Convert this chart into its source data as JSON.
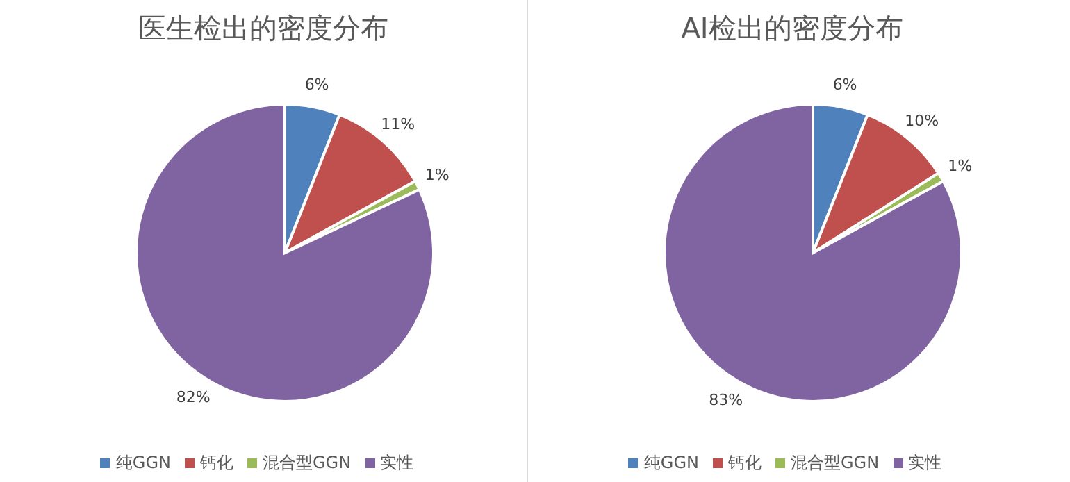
{
  "chart_data": [
    {
      "type": "pie",
      "title": "医生检出的密度分布",
      "categories": [
        "纯GGN",
        "钙化",
        "混合型GGN",
        "实性"
      ],
      "values": [
        6,
        11,
        1,
        82
      ],
      "value_labels": [
        "6%",
        "11%",
        "1%",
        "82%"
      ],
      "colors": [
        "#4f81bd",
        "#c0504d",
        "#9bbb59",
        "#8064a2"
      ],
      "legend": "bottom"
    },
    {
      "type": "pie",
      "title": "AI检出的密度分布",
      "categories": [
        "纯GGN",
        "钙化",
        "混合型GGN",
        "实性"
      ],
      "values": [
        6,
        10,
        1,
        83
      ],
      "value_labels": [
        "6%",
        "10%",
        "1%",
        "83%"
      ],
      "colors": [
        "#4f81bd",
        "#c0504d",
        "#9bbb59",
        "#8064a2"
      ],
      "legend": "bottom"
    }
  ]
}
